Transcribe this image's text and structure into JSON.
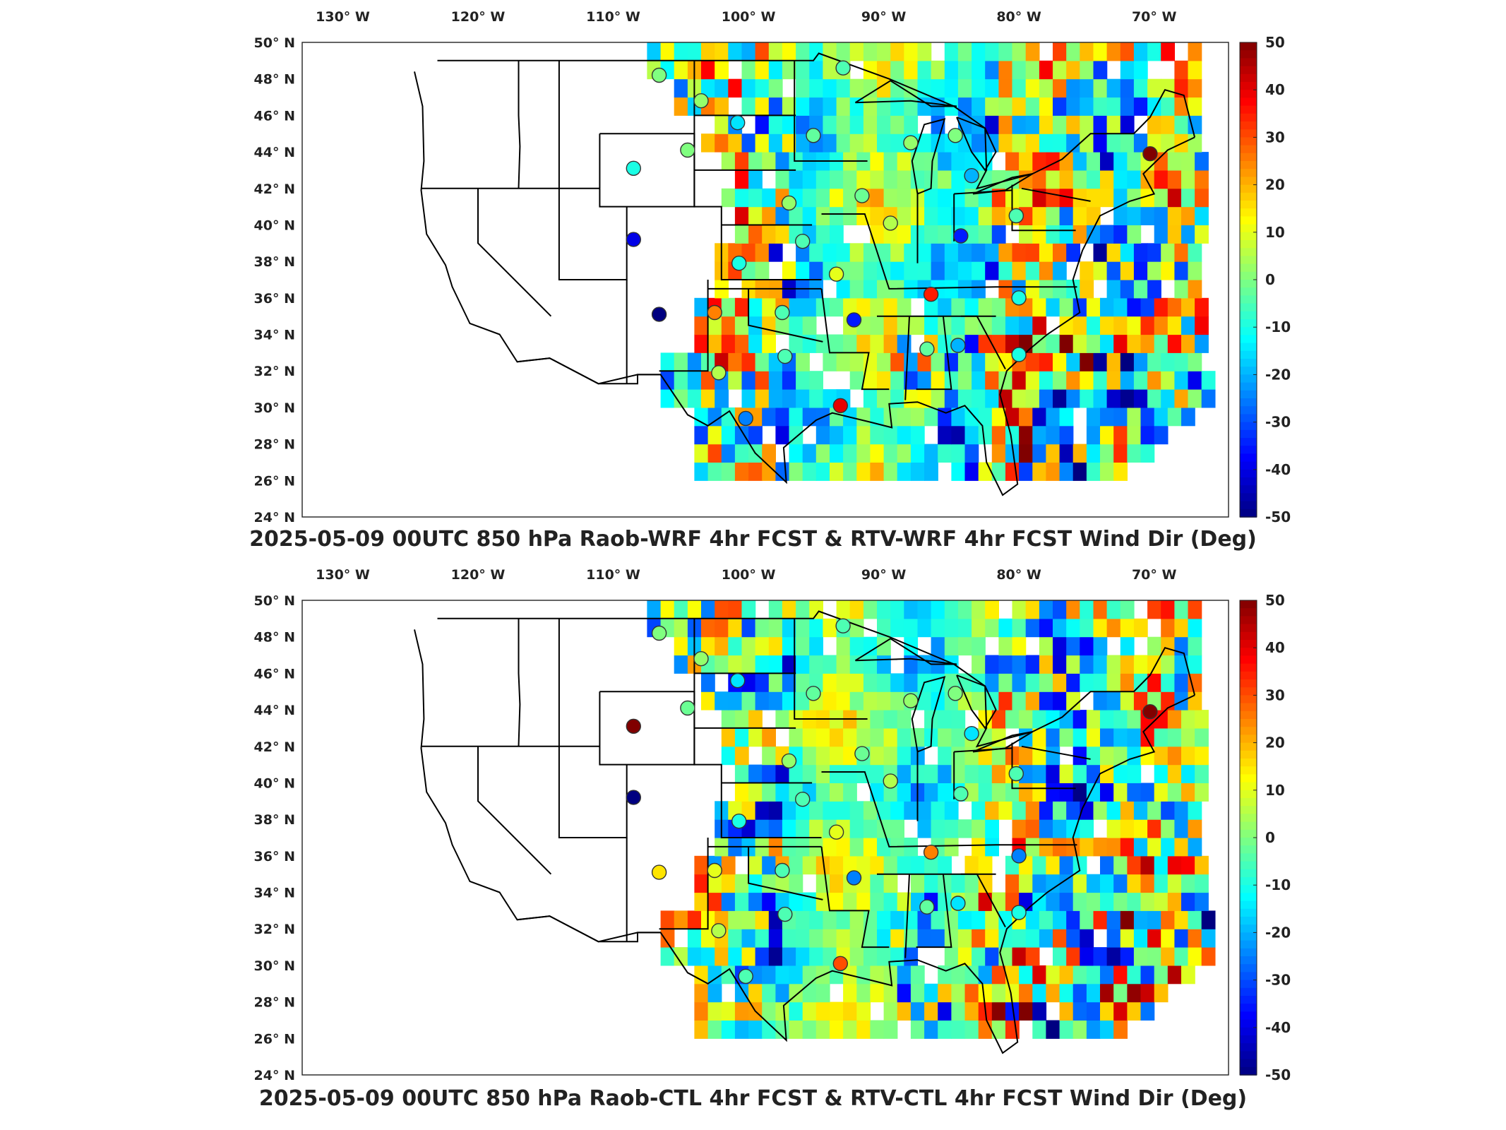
{
  "panels": [
    {
      "title": "2025-05-09 00UTC 850 hPa Raob-WRF 4hr FCST & RTV-WRF 4hr FCST Wind Dir (Deg)",
      "stations": [
        {
          "lon": -106.6,
          "lat": 48.2,
          "v": 0
        },
        {
          "lon": -103.5,
          "lat": 46.8,
          "v": 2
        },
        {
          "lon": -100.8,
          "lat": 45.6,
          "v": -15
        },
        {
          "lon": -93.0,
          "lat": 48.6,
          "v": -5
        },
        {
          "lon": -95.2,
          "lat": 44.9,
          "v": -3
        },
        {
          "lon": -88.0,
          "lat": 44.5,
          "v": 2
        },
        {
          "lon": -84.7,
          "lat": 44.9,
          "v": 0
        },
        {
          "lon": -104.5,
          "lat": 44.1,
          "v": 0
        },
        {
          "lon": -108.5,
          "lat": 43.1,
          "v": -10
        },
        {
          "lon": -97.0,
          "lat": 41.2,
          "v": 2
        },
        {
          "lon": -91.6,
          "lat": 41.6,
          "v": -2
        },
        {
          "lon": -83.5,
          "lat": 42.7,
          "v": -20
        },
        {
          "lon": -80.2,
          "lat": 40.5,
          "v": -5
        },
        {
          "lon": -89.5,
          "lat": 40.1,
          "v": 5
        },
        {
          "lon": -84.3,
          "lat": 39.4,
          "v": -35
        },
        {
          "lon": -96.0,
          "lat": 39.1,
          "v": -5
        },
        {
          "lon": -100.7,
          "lat": 37.9,
          "v": -10
        },
        {
          "lon": -108.5,
          "lat": 39.2,
          "v": -40
        },
        {
          "lon": -93.5,
          "lat": 37.3,
          "v": 10
        },
        {
          "lon": -86.5,
          "lat": 36.2,
          "v": 35
        },
        {
          "lon": -80.0,
          "lat": 36.0,
          "v": -10
        },
        {
          "lon": -106.6,
          "lat": 35.1,
          "v": -50
        },
        {
          "lon": -102.5,
          "lat": 35.2,
          "v": 25
        },
        {
          "lon": -97.5,
          "lat": 35.2,
          "v": -5
        },
        {
          "lon": -92.2,
          "lat": 34.8,
          "v": -35
        },
        {
          "lon": -86.8,
          "lat": 33.2,
          "v": -3
        },
        {
          "lon": -84.5,
          "lat": 33.4,
          "v": -20
        },
        {
          "lon": -80.0,
          "lat": 32.9,
          "v": -10
        },
        {
          "lon": -97.3,
          "lat": 32.8,
          "v": -5
        },
        {
          "lon": -102.2,
          "lat": 31.9,
          "v": 5
        },
        {
          "lon": -93.2,
          "lat": 30.1,
          "v": 40
        },
        {
          "lon": -100.2,
          "lat": 29.4,
          "v": -25
        },
        {
          "lon": -70.3,
          "lat": 43.9,
          "v": 50
        }
      ]
    },
    {
      "title": "2025-05-09 00UTC 850 hPa Raob-CTL 4hr FCST & RTV-CTL 4hr FCST Wind Dir (Deg)",
      "stations": [
        {
          "lon": -106.6,
          "lat": 48.2,
          "v": 0
        },
        {
          "lon": -103.5,
          "lat": 46.8,
          "v": 2
        },
        {
          "lon": -100.8,
          "lat": 45.6,
          "v": -15
        },
        {
          "lon": -93.0,
          "lat": 48.6,
          "v": -5
        },
        {
          "lon": -95.2,
          "lat": 44.9,
          "v": -3
        },
        {
          "lon": -88.0,
          "lat": 44.5,
          "v": 2
        },
        {
          "lon": -84.7,
          "lat": 44.9,
          "v": 0
        },
        {
          "lon": -104.5,
          "lat": 44.1,
          "v": -2
        },
        {
          "lon": -108.5,
          "lat": 43.1,
          "v": 50
        },
        {
          "lon": -97.0,
          "lat": 41.2,
          "v": 2
        },
        {
          "lon": -91.6,
          "lat": 41.6,
          "v": -2
        },
        {
          "lon": -83.5,
          "lat": 42.7,
          "v": -15
        },
        {
          "lon": -80.2,
          "lat": 40.5,
          "v": -5
        },
        {
          "lon": -89.5,
          "lat": 40.1,
          "v": 5
        },
        {
          "lon": -84.3,
          "lat": 39.4,
          "v": -5
        },
        {
          "lon": -96.0,
          "lat": 39.1,
          "v": -5
        },
        {
          "lon": -100.7,
          "lat": 37.9,
          "v": -10
        },
        {
          "lon": -108.5,
          "lat": 39.2,
          "v": -50
        },
        {
          "lon": -93.5,
          "lat": 37.3,
          "v": 10
        },
        {
          "lon": -86.5,
          "lat": 36.2,
          "v": 25
        },
        {
          "lon": -80.0,
          "lat": 36.0,
          "v": -25
        },
        {
          "lon": -106.6,
          "lat": 35.1,
          "v": 15
        },
        {
          "lon": -102.5,
          "lat": 35.2,
          "v": 10
        },
        {
          "lon": -97.5,
          "lat": 35.2,
          "v": -5
        },
        {
          "lon": -92.2,
          "lat": 34.8,
          "v": -25
        },
        {
          "lon": -86.8,
          "lat": 33.2,
          "v": -3
        },
        {
          "lon": -84.5,
          "lat": 33.4,
          "v": -15
        },
        {
          "lon": -80.0,
          "lat": 32.9,
          "v": -10
        },
        {
          "lon": -97.3,
          "lat": 32.8,
          "v": -5
        },
        {
          "lon": -102.2,
          "lat": 31.9,
          "v": 5
        },
        {
          "lon": -93.2,
          "lat": 30.1,
          "v": 30
        },
        {
          "lon": -100.2,
          "lat": 29.4,
          "v": -5
        },
        {
          "lon": -70.3,
          "lat": 43.9,
          "v": 50
        }
      ]
    }
  ],
  "lon_labels": [
    "130 W",
    "120 W",
    "110 W",
    "100 W",
    "90 W",
    "80 W",
    "70 W"
  ],
  "lat_labels": [
    "50 N",
    "48 N",
    "46 N",
    "44 N",
    "42 N",
    "40 N",
    "38 N",
    "36 N",
    "34 N",
    "32 N",
    "30 N",
    "28 N",
    "26 N",
    "24 N"
  ],
  "colorbar": {
    "min": -50,
    "max": 50,
    "ticks": [
      "50",
      "40",
      "30",
      "20",
      "10",
      "0",
      "-10",
      "-20",
      "-30",
      "-40",
      "-50"
    ]
  },
  "colormap": "jet"
}
